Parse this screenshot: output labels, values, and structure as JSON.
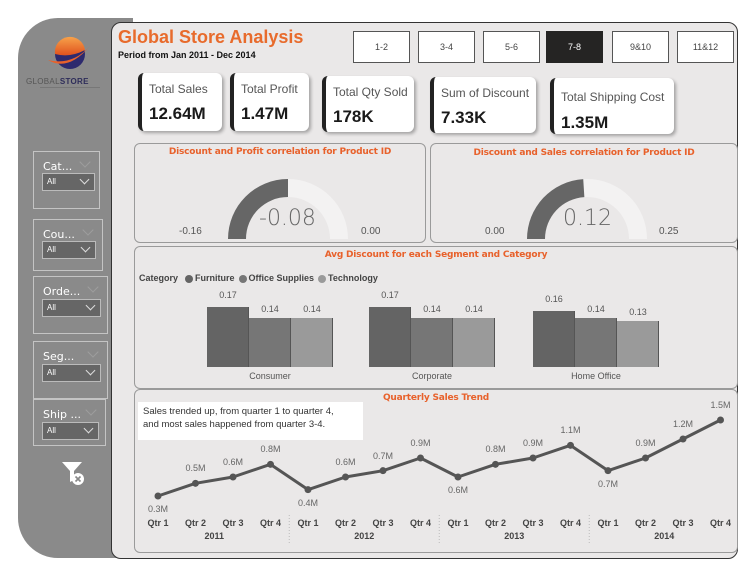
{
  "brand": {
    "logo_icon": "globe-swoosh-logo-icon",
    "name_light": "GLOBAL",
    "name_bold": "STORE"
  },
  "filters": [
    {
      "label": "Cat...",
      "value": "All"
    },
    {
      "label": "Cou...",
      "value": "All"
    },
    {
      "label": "Orde...",
      "value": "All"
    },
    {
      "label": "Seg...",
      "value": "All"
    },
    {
      "label": "Ship ...",
      "value": "All"
    }
  ],
  "clear_filters_icon": "clear-filter-icon",
  "header": {
    "title": "Global Store Analysis",
    "subtitle": "Period from Jan 2011 - Dec 2014"
  },
  "month_buttons": [
    {
      "label": "1-2",
      "active": false
    },
    {
      "label": "3-4",
      "active": false
    },
    {
      "label": "5-6",
      "active": false
    },
    {
      "label": "7-8",
      "active": true
    },
    {
      "label": "9&10",
      "active": false
    },
    {
      "label": "11&12",
      "active": false
    }
  ],
  "kpis": [
    {
      "label": "Total Sales",
      "value": "12.64M"
    },
    {
      "label": "Total Profit",
      "value": "1.47M"
    },
    {
      "label": "Total Qty Sold",
      "value": "178K"
    },
    {
      "label": "Sum of Discount",
      "value": "7.33K"
    },
    {
      "label": "Total Shipping Cost",
      "value": "1.35M"
    }
  ],
  "colors": {
    "accent": "#e8612b",
    "gauge_fill": "#666666",
    "gauge_track": "#f3f2f2",
    "furniture": "#646464",
    "office_supplies": "#767676",
    "technology": "#9a9a9a",
    "line": "#555555"
  },
  "chart_data": [
    {
      "type": "gauge",
      "title": "Discount and Profit correlation for Product ID",
      "value": -0.08,
      "value_label": "-0.08",
      "min": -0.16,
      "min_label": "-0.16",
      "max": 0.0,
      "max_label": "0.00"
    },
    {
      "type": "gauge",
      "title": "Discount and Sales correlation for Product ID",
      "value": 0.12,
      "value_label": "0.12",
      "min": 0.0,
      "min_label": "0.00",
      "max": 0.25,
      "max_label": "0.25"
    },
    {
      "type": "bar",
      "title": "Avg Discount for each Segment and Category",
      "legend_title": "Category",
      "legend_position": "top-left",
      "categories": [
        "Consumer",
        "Corporate",
        "Home Office"
      ],
      "series": [
        {
          "name": "Furniture",
          "values": [
            0.17,
            0.17,
            0.16
          ],
          "labels": [
            "0.17",
            "0.17",
            "0.16"
          ]
        },
        {
          "name": "Office Supplies",
          "values": [
            0.14,
            0.14,
            0.14
          ],
          "labels": [
            "0.14",
            "0.14",
            "0.14"
          ]
        },
        {
          "name": "Technology",
          "values": [
            0.14,
            0.14,
            0.13
          ],
          "labels": [
            "0.14",
            "0.14",
            "0.13"
          ]
        }
      ]
    },
    {
      "type": "line",
      "title": "Quarterly Sales Trend",
      "annotation_line1": "Sales trended up, from quarter 1 to quarter 4,",
      "annotation_line2": "and most sales happened from quarter 3-4.",
      "years": [
        "2011",
        "2012",
        "2013",
        "2014"
      ],
      "quarters": [
        "Qtr 1",
        "Qtr 2",
        "Qtr 3",
        "Qtr 4"
      ],
      "values": [
        0.3,
        0.5,
        0.6,
        0.8,
        0.4,
        0.6,
        0.7,
        0.9,
        0.6,
        0.8,
        0.9,
        1.1,
        0.7,
        0.9,
        1.2,
        1.5
      ],
      "labels": [
        "0.3M",
        "0.5M",
        "0.6M",
        "0.8M",
        "0.4M",
        "0.6M",
        "0.7M",
        "0.9M",
        "0.6M",
        "0.8M",
        "0.9M",
        "1.1M",
        "0.7M",
        "0.9M",
        "1.2M",
        "1.5M"
      ],
      "label_below": [
        true,
        false,
        false,
        false,
        true,
        false,
        false,
        false,
        true,
        false,
        false,
        false,
        true,
        false,
        false,
        false
      ]
    }
  ]
}
